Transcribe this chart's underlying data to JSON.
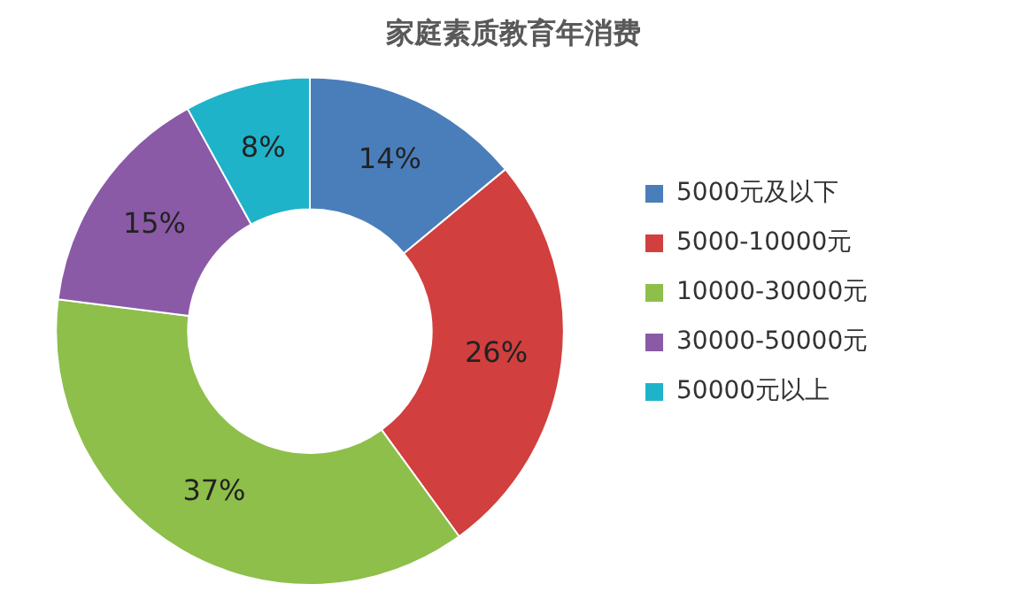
{
  "chart_data": {
    "type": "donut",
    "title": "家庭素质教育年消费",
    "categories": [
      "5000元及以下",
      "5000-10000元",
      "10000-30000元",
      "30000-50000元",
      "50000元以上"
    ],
    "values": [
      14,
      26,
      37,
      15,
      8
    ],
    "colors": [
      "#4a7ebb",
      "#d13f3f",
      "#8dbf4a",
      "#8a5aa6",
      "#1fb3c9"
    ],
    "value_labels": [
      "14%",
      "26%",
      "37%",
      "15%",
      "8%"
    ],
    "legend": "right"
  }
}
